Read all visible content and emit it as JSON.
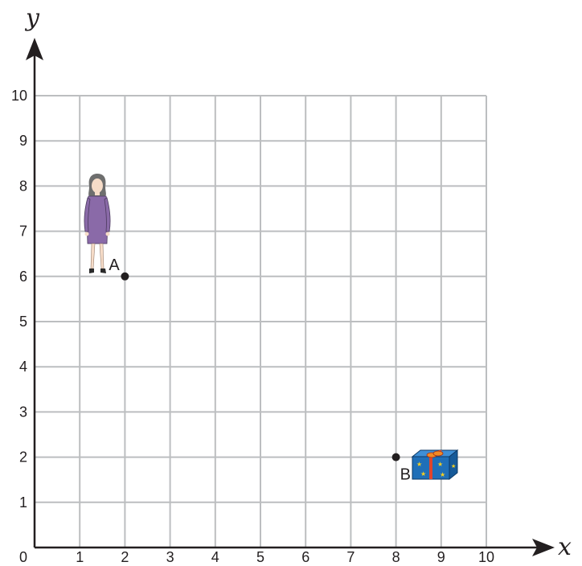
{
  "axes": {
    "x_label": "x",
    "y_label": "y",
    "origin_label": "0",
    "x_ticks": [
      "1",
      "2",
      "3",
      "4",
      "5",
      "6",
      "7",
      "8",
      "9",
      "10"
    ],
    "y_ticks": [
      "1",
      "2",
      "3",
      "4",
      "5",
      "6",
      "7",
      "8",
      "9",
      "10"
    ],
    "range": [
      0,
      10
    ]
  },
  "points": [
    {
      "id": "A",
      "label": "A",
      "x": 2,
      "y": 6
    },
    {
      "id": "B",
      "label": "B",
      "x": 8,
      "y": 2
    }
  ],
  "pictures": [
    {
      "name": "woman",
      "icon": "woman-icon",
      "near_point": "A"
    },
    {
      "name": "gift",
      "icon": "gift-box-icon",
      "near_point": "B"
    }
  ],
  "colors": {
    "grid": "#bcbec0",
    "axis": "#231f20",
    "dress": "#8a6aa8",
    "gift": "#1f6fb8",
    "ribbon": "#e0442b"
  }
}
